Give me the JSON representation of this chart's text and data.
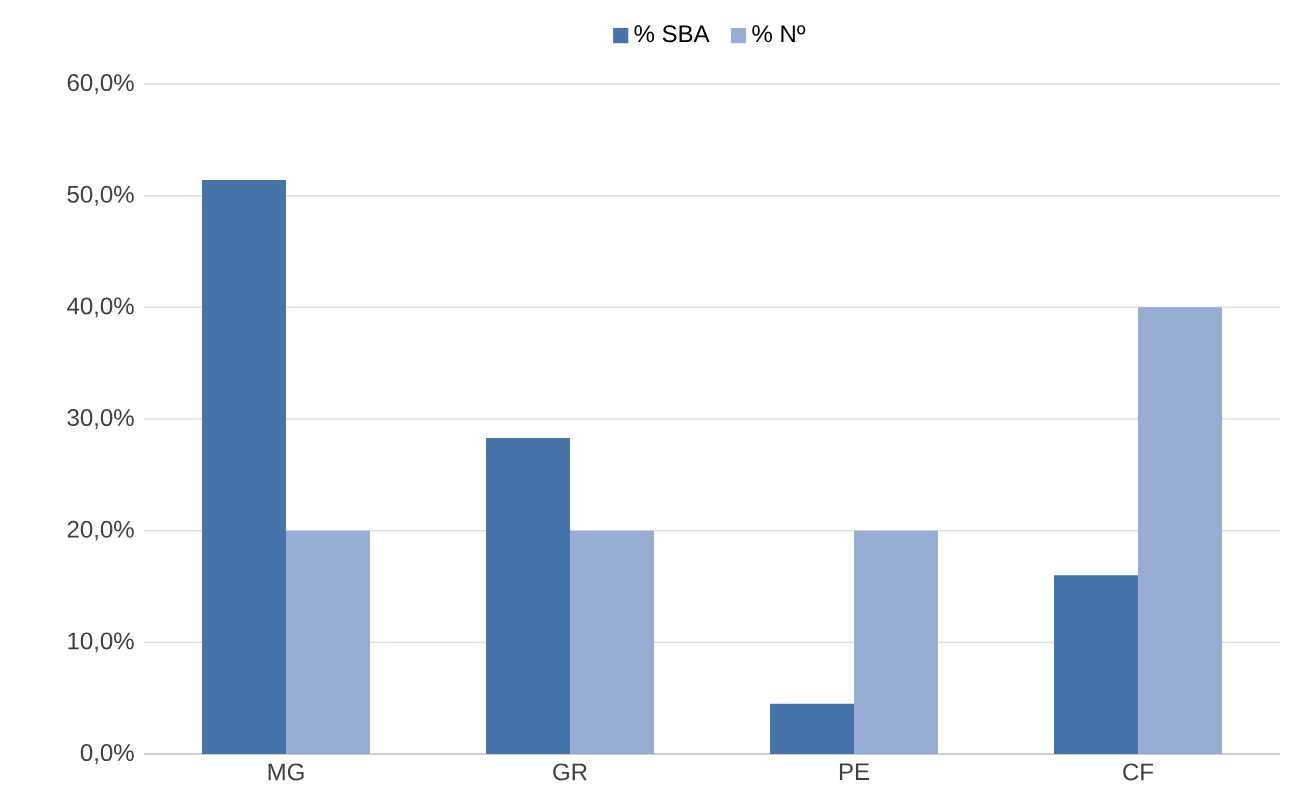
{
  "chart_data": {
    "type": "bar",
    "categories": [
      "MG",
      "GR",
      "PE",
      "CF"
    ],
    "series": [
      {
        "name": "% SBA",
        "color": "#4674aa",
        "values": [
          51.4,
          28.3,
          4.5,
          16.0
        ]
      },
      {
        "name": "% Nº",
        "color": "#97add4",
        "values": [
          20.0,
          20.0,
          20.0,
          40.0
        ]
      }
    ],
    "ylim": [
      0,
      60
    ],
    "yticks": [
      {
        "value": 0,
        "label": "0,0%"
      },
      {
        "value": 10,
        "label": "10,0%"
      },
      {
        "value": 20,
        "label": "20,0%"
      },
      {
        "value": 30,
        "label": "30,0%"
      },
      {
        "value": 40,
        "label": "40,0%"
      },
      {
        "value": 50,
        "label": "50,0%"
      },
      {
        "value": 60,
        "label": "60,0%"
      }
    ],
    "grid": "y",
    "legend": "top"
  }
}
